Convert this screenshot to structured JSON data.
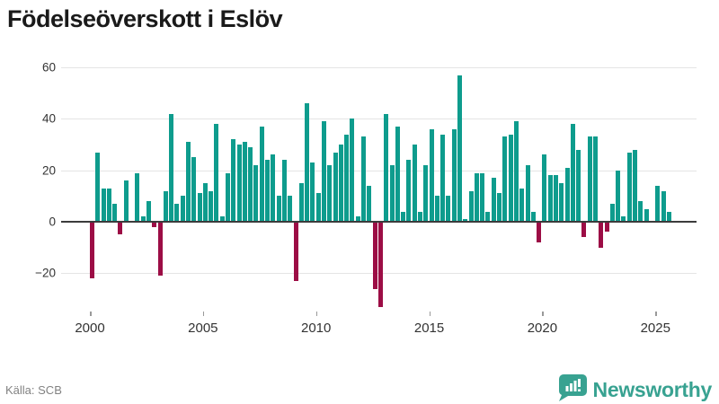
{
  "title": "Födelseöverskott i Eslöv",
  "source": "Källa: SCB",
  "brand": {
    "name": "Newsworthy",
    "logo_icon": "bar-chart-badge-icon"
  },
  "colors": {
    "positive_bar": "#0e9c8d",
    "negative_bar": "#9c0d45",
    "zero_axis": "#3b3b3b",
    "gridline": "#e4e4e4",
    "text": "#333333",
    "muted_text": "#828282",
    "brand_teal": "#38a291"
  },
  "chart_data": {
    "type": "bar",
    "title": "Födelseöverskott i Eslöv",
    "xlabel": "",
    "ylabel": "",
    "frequency": "quarterly",
    "start_year": 2000,
    "start_quarter": 1,
    "end_year": 2025,
    "end_quarter": 3,
    "values": [
      -22,
      27,
      13,
      13,
      7,
      -5,
      16,
      0,
      19,
      2,
      8,
      -2,
      -21,
      12,
      42,
      7,
      10,
      31,
      25,
      11,
      15,
      12,
      38,
      2,
      19,
      32,
      30,
      31,
      29,
      22,
      37,
      24,
      26,
      10,
      24,
      10,
      -23,
      15,
      46,
      23,
      11,
      39,
      22,
      27,
      30,
      34,
      40,
      2,
      33,
      14,
      -26,
      -33,
      42,
      22,
      37,
      4,
      24,
      30,
      4,
      22,
      36,
      10,
      34,
      10,
      36,
      57,
      1,
      12,
      19,
      19,
      4,
      17,
      11,
      33,
      34,
      39,
      13,
      22,
      4,
      -8,
      26,
      18,
      18,
      15,
      21,
      38,
      28,
      -6,
      33,
      33,
      -10,
      -4,
      7,
      20,
      2,
      27,
      28,
      8,
      5,
      0,
      14,
      12,
      4
    ],
    "y_ticks": [
      "60",
      "40",
      "20",
      "0",
      "−20"
    ],
    "y_tick_values": [
      60,
      40,
      20,
      0,
      -20
    ],
    "x_ticks": [
      "2000",
      "2005",
      "2010",
      "2015",
      "2020",
      "2025"
    ],
    "x_tick_years": [
      2000,
      2005,
      2010,
      2015,
      2020,
      2025
    ],
    "ylim": [
      -36,
      62
    ],
    "grid": true,
    "legend": "none"
  }
}
